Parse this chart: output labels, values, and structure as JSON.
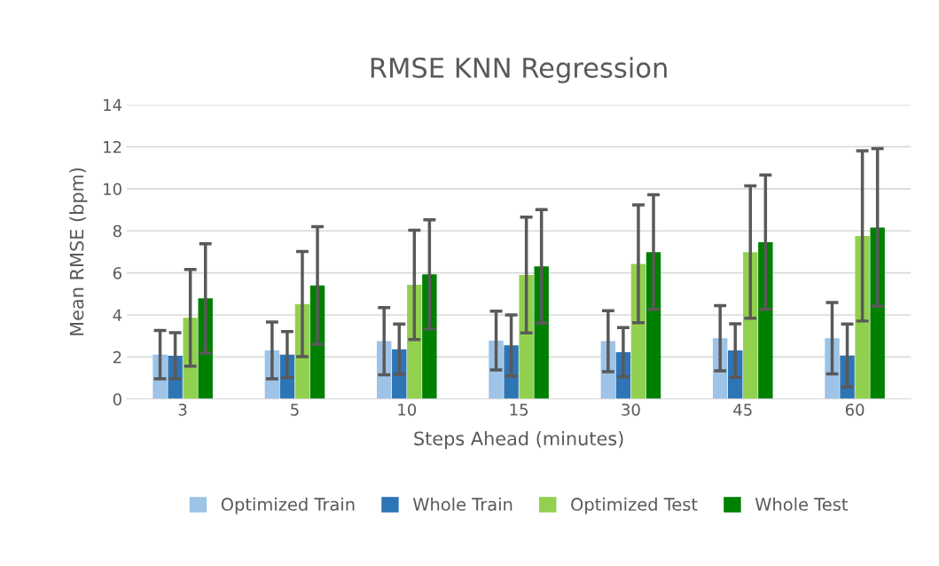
{
  "chart_data": {
    "type": "bar",
    "title": "RMSE KNN Regression",
    "xlabel": "Steps Ahead (minutes)",
    "ylabel": "Mean RMSE (bpm)",
    "categories": [
      "3",
      "5",
      "10",
      "15",
      "30",
      "45",
      "60"
    ],
    "series": [
      {
        "name": "Optimized Train",
        "color": "#9dc3e6",
        "values": [
          2.11,
          2.31,
          2.75,
          2.78,
          2.75,
          2.89,
          2.89
        ],
        "errors": [
          1.15,
          1.35,
          1.6,
          1.4,
          1.45,
          1.55,
          1.7
        ]
      },
      {
        "name": "Whole Train",
        "color": "#2e75b6",
        "values": [
          2.06,
          2.11,
          2.37,
          2.55,
          2.23,
          2.31,
          2.07
        ],
        "errors": [
          1.1,
          1.1,
          1.2,
          1.45,
          1.17,
          1.27,
          1.5
        ]
      },
      {
        "name": "Optimized Test",
        "color": "#92d050",
        "values": [
          3.86,
          4.52,
          5.43,
          5.9,
          6.43,
          6.99,
          7.76
        ],
        "errors": [
          2.3,
          2.5,
          2.6,
          2.75,
          2.8,
          3.15,
          4.05
        ]
      },
      {
        "name": "Whole Test",
        "color": "#008000",
        "values": [
          4.79,
          5.4,
          5.93,
          6.31,
          6.99,
          7.46,
          8.16
        ],
        "errors": [
          2.6,
          2.8,
          2.6,
          2.7,
          2.73,
          3.2,
          3.75
        ]
      }
    ],
    "ylim": [
      0,
      14
    ],
    "yticks": [
      0,
      2,
      4,
      6,
      8,
      10,
      12,
      14
    ],
    "grid": "y",
    "legend": "bottom"
  }
}
